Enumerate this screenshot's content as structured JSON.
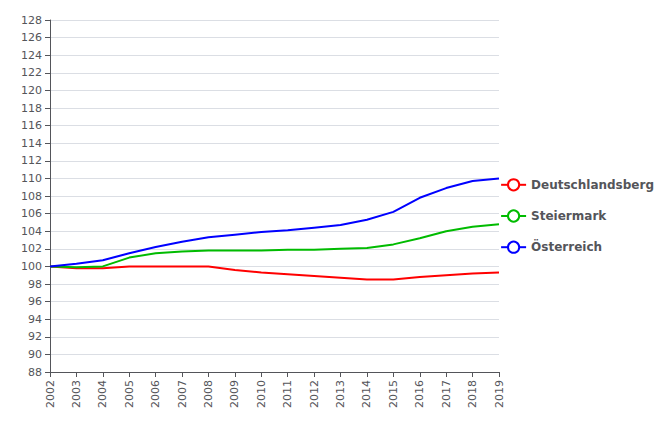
{
  "chart_data": {
    "type": "line",
    "categories": [
      "2002",
      "2003",
      "2004",
      "2005",
      "2006",
      "2007",
      "2008",
      "2009",
      "2010",
      "2011",
      "2012",
      "2013",
      "2014",
      "2015",
      "2016",
      "2017",
      "2018",
      "2019"
    ],
    "series": [
      {
        "name": "Deutschlandsberg",
        "color": "#ff0000",
        "values": [
          100.0,
          99.8,
          99.8,
          100.0,
          100.0,
          100.0,
          100.0,
          99.6,
          99.3,
          99.1,
          98.9,
          98.7,
          98.5,
          98.5,
          98.8,
          99.0,
          99.2,
          99.3
        ]
      },
      {
        "name": "Steiermark",
        "color": "#00bb00",
        "values": [
          100.0,
          99.9,
          100.0,
          101.0,
          101.5,
          101.7,
          101.8,
          101.8,
          101.8,
          101.9,
          101.9,
          102.0,
          102.1,
          102.5,
          103.2,
          104.0,
          104.5,
          104.8
        ]
      },
      {
        "name": "Österreich",
        "color": "#0000ff",
        "values": [
          100.0,
          100.3,
          100.7,
          101.5,
          102.2,
          102.8,
          103.3,
          103.6,
          103.9,
          104.1,
          104.4,
          104.7,
          105.3,
          106.2,
          107.8,
          108.9,
          109.7,
          110.0
        ]
      }
    ],
    "ylim": [
      88,
      128
    ],
    "yticks": [
      88,
      90,
      92,
      94,
      96,
      98,
      100,
      102,
      104,
      106,
      108,
      110,
      112,
      114,
      116,
      118,
      120,
      122,
      124,
      126,
      128
    ],
    "grid": true,
    "legend": "right"
  }
}
